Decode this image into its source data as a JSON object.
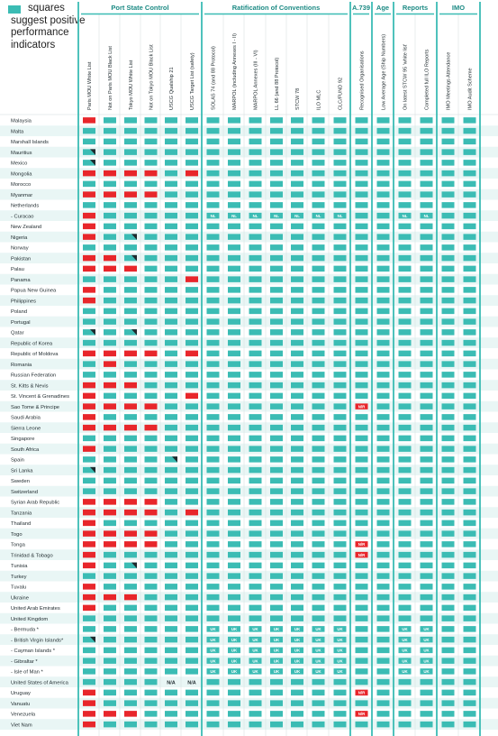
{
  "legend": {
    "line1": "squares",
    "line2": "suggest positive",
    "line3": "performance",
    "line4": "indicators"
  },
  "colors": {
    "good": "#3bbcb4",
    "bad": "#e8262b",
    "bar": "#3bbcb4",
    "stripe": "#e9f6f5",
    "text": "#1f2a2e"
  },
  "groups": [
    {
      "label": "Port State Control"
    },
    {
      "label": "Ratification of Conventions"
    },
    {
      "label": "A.739"
    },
    {
      "label": "Age"
    },
    {
      "label": "Reports"
    },
    {
      "label": "IMO"
    }
  ],
  "columns": [
    "Paris MOU White List",
    "Not on Paris MOU Black List",
    "Tokyo MOU White List",
    "Not on Tokyo MOU Black List",
    "USCG Qualship 21",
    "USCG Target List (safety)",
    "SOLAS 74 (and 88 Protocol)",
    "MARPOL (including Annexes I - II)",
    "MARPOL Annexes (III - VI)",
    "LL 66 (and 88 Protocol)",
    "STCW 78",
    "ILO MLC",
    "CLC/FUND 92",
    "Recognised Organisations",
    "Low Average Age (Ship Numbers)",
    "On latest STCW 95 'white list'",
    "Completed full ILO Reports",
    "IMO Meetings Attendance",
    "IMO Audit Scheme"
  ],
  "rows": [
    {
      "name": "Malaysia",
      "cells": "RGGGGGGGGGGGGGGGGGG"
    },
    {
      "name": "Malta",
      "cells": "GGGGGGGGGGGGGGGGGGG"
    },
    {
      "name": "Marshall Islands",
      "cells": "GGGGGGGGGGGGGGGGGGG"
    },
    {
      "name": "Mauritius",
      "cells": "TGGGGGGGGGGGGGGGGGG"
    },
    {
      "name": "Mexico",
      "cells": "TGGGGGGGGGGGGGGGGGG"
    },
    {
      "name": "Mongolia",
      "cells": "RRRRGRGGGGGGGGGGGGG"
    },
    {
      "name": "Morocco",
      "cells": "GGGGGGGGGGGGGGGGGGG"
    },
    {
      "name": "Myanmar",
      "cells": "RRRRGGGGGGGGGGGGGGG"
    },
    {
      "name": "Netherlands",
      "cells": "GGGGGGGGGGGGGGGGGGG"
    },
    {
      "name": "- Curacao",
      "cells": "RGGGGGNNNNNNNGGNNGG"
    },
    {
      "name": "New Zealand",
      "cells": "RGGGGGGGGGGGGGGGGGG"
    },
    {
      "name": "Nigeria",
      "cells": "RGTGGGGGGGGGGGGGGGG"
    },
    {
      "name": "Norway",
      "cells": "GGGGGGGGGGGGGGGGGGG"
    },
    {
      "name": "Pakistan",
      "cells": "RRTGGGGGGGGGGGGGGGG"
    },
    {
      "name": "Palau",
      "cells": "RRRGGGGGGGGGGGGGGGG"
    },
    {
      "name": "Panama",
      "cells": "GGGGGRGGGGGGGGGGGGG"
    },
    {
      "name": "Papua New Guinea",
      "cells": "RGGGGGGGGGGGGGGGGGG"
    },
    {
      "name": "Philippines",
      "cells": "RGGGGGGGGGGGGGGGGGG"
    },
    {
      "name": "Poland",
      "cells": "GGGGGGGGGGGGGGGGGGG"
    },
    {
      "name": "Portugal",
      "cells": "GGGGGGGGGGGGGGGGGGG"
    },
    {
      "name": "Qatar",
      "cells": "TGTGGGGGGGGGGGGGGGG"
    },
    {
      "name": "Republic of Korea",
      "cells": "GGGGGGGGGGGGGGGGGGG"
    },
    {
      "name": "Republic of Moldova",
      "cells": "RRRRGRGGGGGGGGGGGGG"
    },
    {
      "name": "Romania",
      "cells": "GRGGGGGGGGGGGGGGGGG"
    },
    {
      "name": "Russian Federation",
      "cells": "GGGGGGGGGGGGGGGGGGG"
    },
    {
      "name": "St. Kitts & Nevis",
      "cells": "RRRGGGGGGGGGGGGGGGG"
    },
    {
      "name": "St. Vincent & Grenadines",
      "cells": "RGGGGRGGGGGGGGGGGGG"
    },
    {
      "name": "Sao Tome & Principe",
      "cells": "RRRRGGGGGGGGGMGGGGG"
    },
    {
      "name": "Saudi Arabia",
      "cells": "RGGGGGGGGGGGGGGGGGG"
    },
    {
      "name": "Sierra Leone",
      "cells": "RRRRGGGGGGGGGGGGGGG"
    },
    {
      "name": "Singapore",
      "cells": "GGGGGGGGGGGGGGGGGGG"
    },
    {
      "name": "South Africa",
      "cells": "RGGGGGGGGGGGGGGGGGG"
    },
    {
      "name": "Spain",
      "cells": "GGGGTGGGGGGGGGGGGGG"
    },
    {
      "name": "Sri Lanka",
      "cells": "TGGGGGGGGGGGGGGGGGG"
    },
    {
      "name": "Sweden",
      "cells": "GGGGGGGGGGGGGGGGGGG"
    },
    {
      "name": "Switzerland",
      "cells": "GGGGGGGGGGGGGGGGGGG"
    },
    {
      "name": "Syrian Arab Republic",
      "cells": "RRRRGGGGGGGGGGGGGGG"
    },
    {
      "name": "Tanzania",
      "cells": "RRRRGRGGGGGGGGGGGGG"
    },
    {
      "name": "Thailand",
      "cells": "RGGGGGGGGGGGGGGGGGG"
    },
    {
      "name": "Togo",
      "cells": "RRRRGGGGGGGGGGGGGGG"
    },
    {
      "name": "Tonga",
      "cells": "RRRRGGGGGGGGGMGGGGG"
    },
    {
      "name": "Trinidad & Tobago",
      "cells": "RGGGGGGGGGGGGMGGGGG"
    },
    {
      "name": "Tunisia",
      "cells": "RGTGGGGGGGGGGGGGGGG"
    },
    {
      "name": "Turkey",
      "cells": "GGGGGGGGGGGGGGGGGGG"
    },
    {
      "name": "Tuvalu",
      "cells": "RGGGGGGGGGGGGGGGGGG"
    },
    {
      "name": "Ukraine",
      "cells": "RRRGGGGGGGGGGGGGGGG"
    },
    {
      "name": "United Arab Emirates",
      "cells": "RGGGGGGGGGGGGGGGGGG"
    },
    {
      "name": "United Kingdom",
      "cells": "GGGGGGGGGGGGGGGGGGG"
    },
    {
      "name": "- Bermuda *",
      "cells": "GGGGGGUUUUUUUGGUUGG"
    },
    {
      "name": "- British Virgin Islands*",
      "cells": "TGGGGGUUUUUUUGGUUGG"
    },
    {
      "name": "- Cayman Islands *",
      "cells": "GGGGGGUUUUUUUGGUUGG"
    },
    {
      "name": "- Gibraltar *",
      "cells": "GGGGGGUUUUUUUGGUUGG"
    },
    {
      "name": "- Isle of Man *",
      "cells": "GGGGGGUUUUUUUGGUUGG"
    },
    {
      "name": "United States of America",
      "cells": "GGGGAAGGGGGGGGGGGGG"
    },
    {
      "name": "Uruguay",
      "cells": "RGGGGGGGGGGGGMGGGGG"
    },
    {
      "name": "Vanuatu",
      "cells": "RGGGGGGGGGGGGGGGGGG"
    },
    {
      "name": "Venezuela",
      "cells": "RRRGGGGGGGGGGMGGGGG"
    },
    {
      "name": "Viet Nam",
      "cells": "RGGGGGGGGGGGGGGGGGG"
    }
  ],
  "marks": {
    "N": "NL",
    "U": "UK",
    "M": "N/R",
    "A": "N/A"
  },
  "chart_data": {
    "type": "table",
    "legend": "squares suggest positive performance indicators",
    "groups": [
      "Port State Control",
      "Ratification of Conventions",
      "A.739",
      "Age",
      "Reports",
      "IMO"
    ],
    "encoding": {
      "G": "positive",
      "R": "negative",
      "T": "positive with corner mark",
      "N": "NL",
      "U": "UK",
      "M": "N/R",
      "A": "N/A"
    }
  }
}
